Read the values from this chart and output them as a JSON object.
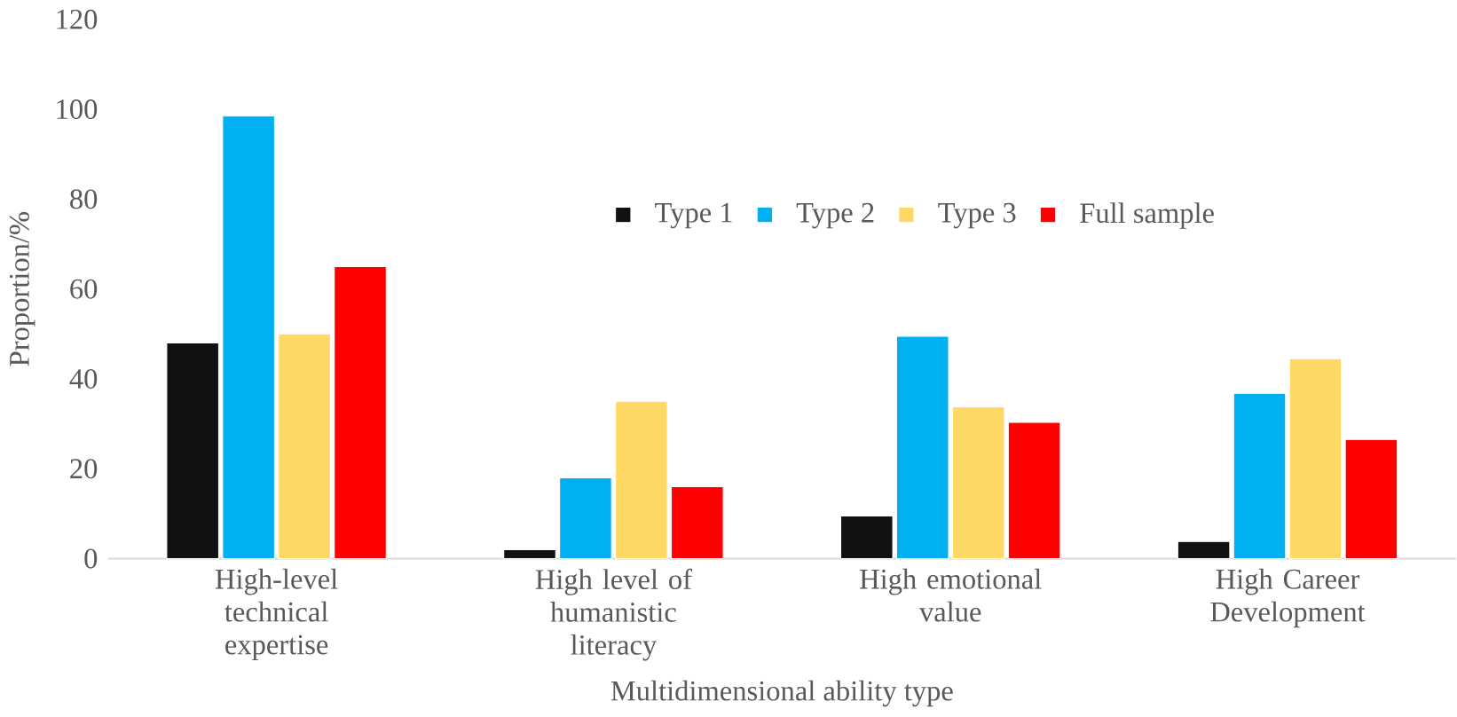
{
  "chart_data": {
    "type": "bar",
    "xlabel": "Multidimensional ability type",
    "ylabel": "Proportion/%",
    "categories": [
      "High-level technical expertise",
      "High level of humanistic literacy",
      "High emotional value",
      "High Career Development"
    ],
    "series": [
      {
        "name": "Type 1",
        "color": "#111111",
        "values": [
          48,
          2,
          9.5,
          3.8
        ]
      },
      {
        "name": "Type 2",
        "color": "#00b0f0",
        "values": [
          98.5,
          18,
          49.5,
          36.8
        ]
      },
      {
        "name": "Type 3",
        "color": "#ffd966",
        "values": [
          50,
          35,
          33.8,
          44.5
        ]
      },
      {
        "name": "Full sample",
        "color": "#ff0000",
        "values": [
          65,
          16,
          30.3,
          26.5
        ]
      }
    ],
    "ylim": [
      0,
      120
    ],
    "yticks": [
      0,
      20,
      40,
      60,
      80,
      100,
      120
    ],
    "legend": "top right"
  }
}
